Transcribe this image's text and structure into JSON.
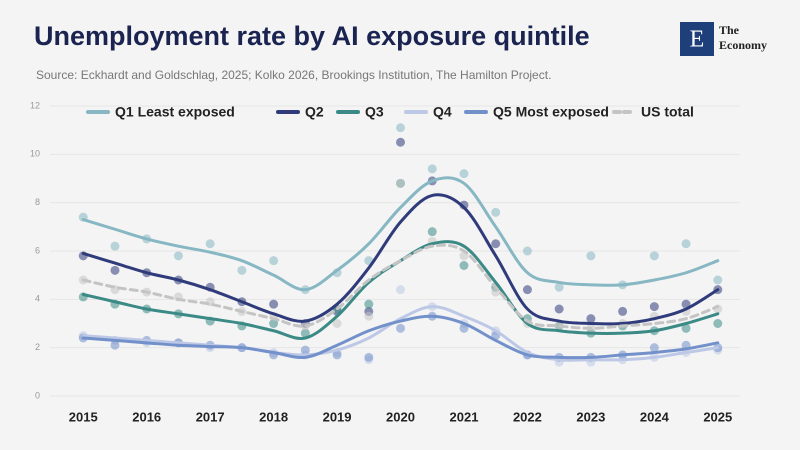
{
  "brand": {
    "mark": "E",
    "lines": [
      "The",
      "Economy"
    ]
  },
  "chart_data": {
    "type": "line",
    "title": "Unemployment rate by AI exposure quintile",
    "subtitle": "Source: Eckhardt and Goldschlag, 2025; Kolko 2026, Brookings Institution, The Hamilton Project.",
    "x": [
      2015,
      2015.5,
      2016,
      2016.5,
      2017,
      2017.5,
      2018,
      2018.5,
      2019,
      2019.5,
      2020,
      2020.5,
      2021,
      2021.5,
      2022,
      2022.5,
      2023,
      2023.5,
      2024,
      2024.5,
      2025
    ],
    "xlim": [
      2014.35,
      2025.35
    ],
    "xticks": [
      2015,
      2016,
      2017,
      2018,
      2019,
      2020,
      2021,
      2022,
      2023,
      2024,
      2025
    ],
    "ylim": [
      0,
      12
    ],
    "yticks": [
      0,
      2,
      4,
      6,
      8,
      10,
      12
    ],
    "grid": true,
    "legend": "top",
    "series": [
      {
        "name": "Q1 Least exposed",
        "color": "#86b7c3",
        "dashed": false,
        "values": [
          7.3,
          6.9,
          6.5,
          6.2,
          5.95,
          5.6,
          5.0,
          4.4,
          5.2,
          6.3,
          7.8,
          8.9,
          8.8,
          7.0,
          5.1,
          4.7,
          4.6,
          4.6,
          4.8,
          5.1,
          5.6
        ],
        "points": [
          7.4,
          6.2,
          6.5,
          5.8,
          6.3,
          5.2,
          5.6,
          4.4,
          5.1,
          5.6,
          11.1,
          9.4,
          9.2,
          7.6,
          6.0,
          4.5,
          5.8,
          4.6,
          5.8,
          6.3,
          4.8
        ]
      },
      {
        "name": "Q2",
        "color": "#2f3b7a",
        "dashed": false,
        "values": [
          5.9,
          5.5,
          5.1,
          4.8,
          4.4,
          3.9,
          3.4,
          3.1,
          3.8,
          5.3,
          7.2,
          8.3,
          7.8,
          5.8,
          3.6,
          3.1,
          3.0,
          3.0,
          3.2,
          3.6,
          4.4
        ],
        "points": [
          5.8,
          5.2,
          5.1,
          4.8,
          4.5,
          3.9,
          3.8,
          3.0,
          3.5,
          3.5,
          10.5,
          8.9,
          7.9,
          6.3,
          4.4,
          3.6,
          3.2,
          3.5,
          3.7,
          3.8,
          4.4
        ]
      },
      {
        "name": "Q3",
        "color": "#3b8a86",
        "dashed": false,
        "values": [
          4.2,
          3.9,
          3.6,
          3.4,
          3.2,
          3.0,
          2.7,
          2.4,
          3.3,
          4.7,
          5.6,
          6.3,
          6.2,
          4.7,
          3.0,
          2.7,
          2.6,
          2.6,
          2.7,
          3.0,
          3.4
        ],
        "points": [
          4.1,
          3.8,
          3.6,
          3.4,
          3.1,
          2.9,
          3.0,
          2.6,
          3.6,
          3.8,
          8.8,
          6.8,
          5.4,
          4.5,
          3.2,
          2.9,
          2.6,
          2.9,
          2.7,
          2.8,
          3.0
        ]
      },
      {
        "name": "Q4",
        "color": "#bcc8e6",
        "dashed": false,
        "values": [
          2.5,
          2.4,
          2.3,
          2.2,
          2.1,
          2.0,
          1.8,
          1.7,
          1.9,
          2.4,
          3.2,
          3.7,
          3.3,
          2.7,
          1.8,
          1.5,
          1.5,
          1.5,
          1.6,
          1.8,
          2.0
        ],
        "points": [
          2.5,
          2.3,
          2.2,
          2.2,
          2.0,
          2.0,
          1.8,
          1.7,
          1.8,
          1.5,
          4.4,
          3.7,
          3.0,
          2.7,
          1.7,
          1.4,
          1.4,
          1.5,
          1.6,
          1.8,
          1.9
        ]
      },
      {
        "name": "Q5 Most exposed",
        "color": "#7290ca",
        "dashed": false,
        "values": [
          2.4,
          2.3,
          2.2,
          2.1,
          2.05,
          2.0,
          1.8,
          1.6,
          2.1,
          2.7,
          3.1,
          3.3,
          3.0,
          2.3,
          1.7,
          1.6,
          1.6,
          1.7,
          1.8,
          1.95,
          2.2
        ],
        "points": [
          2.4,
          2.1,
          2.3,
          2.2,
          2.1,
          2.0,
          1.7,
          1.9,
          1.7,
          1.6,
          2.8,
          3.3,
          2.8,
          2.5,
          1.7,
          1.6,
          1.6,
          1.7,
          2.0,
          2.1,
          2.0
        ]
      },
      {
        "name": "US total",
        "color": "#c4c4c4",
        "dashed": true,
        "values": [
          4.8,
          4.5,
          4.3,
          4.0,
          3.8,
          3.5,
          3.2,
          2.9,
          3.6,
          4.8,
          5.6,
          6.2,
          6.0,
          4.5,
          3.1,
          2.9,
          2.8,
          2.9,
          3.0,
          3.2,
          3.7
        ],
        "points": [
          4.8,
          4.4,
          4.3,
          4.1,
          3.9,
          3.5,
          3.3,
          2.9,
          3.0,
          3.3,
          8.8,
          6.4,
          5.8,
          4.3,
          3.0,
          2.9,
          2.8,
          3.0,
          3.3,
          3.5,
          3.6
        ]
      }
    ]
  }
}
